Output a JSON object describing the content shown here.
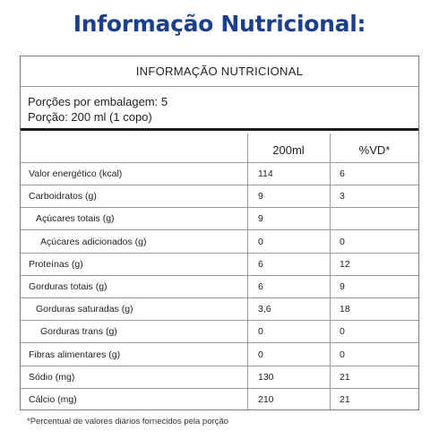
{
  "title": "Informação Nutricional:",
  "panel": {
    "heading": "INFORMAÇÃO NUTRICIONAL",
    "portions_line": "Porções por embalagem: 5",
    "serving_line": "Porção: 200 ml (1 copo)",
    "columns": {
      "amount": "200ml",
      "dv": "%VD*"
    },
    "rows": [
      {
        "name": "Valor energético (kcal)",
        "amount": "114",
        "dv": "6",
        "indent": 0
      },
      {
        "name": "Carboidratos (g)",
        "amount": "9",
        "dv": "3",
        "indent": 0
      },
      {
        "name": "Açúcares totais (g)",
        "amount": "9",
        "dv": "",
        "indent": 1
      },
      {
        "name": "Açúcares adicionados (g)",
        "amount": "0",
        "dv": "0",
        "indent": 2
      },
      {
        "name": "Proteínas (g)",
        "amount": "6",
        "dv": "12",
        "indent": 0
      },
      {
        "name": "Gorduras totais (g)",
        "amount": "6",
        "dv": "9",
        "indent": 0
      },
      {
        "name": "Gorduras saturadas (g)",
        "amount": "3,6",
        "dv": "18",
        "indent": 1
      },
      {
        "name": "Gorduras trans (g)",
        "amount": "0",
        "dv": "0",
        "indent": 2
      },
      {
        "name": "Fibras alimentares (g)",
        "amount": "0",
        "dv": "0",
        "indent": 0
      },
      {
        "name": "Sódio (mg)",
        "amount": "130",
        "dv": "21",
        "indent": 0
      },
      {
        "name": "Cálcio (mg)",
        "amount": "210",
        "dv": "21",
        "indent": 0
      }
    ]
  },
  "footnote": "*Percentual de valores diários fornecidos pela porção"
}
